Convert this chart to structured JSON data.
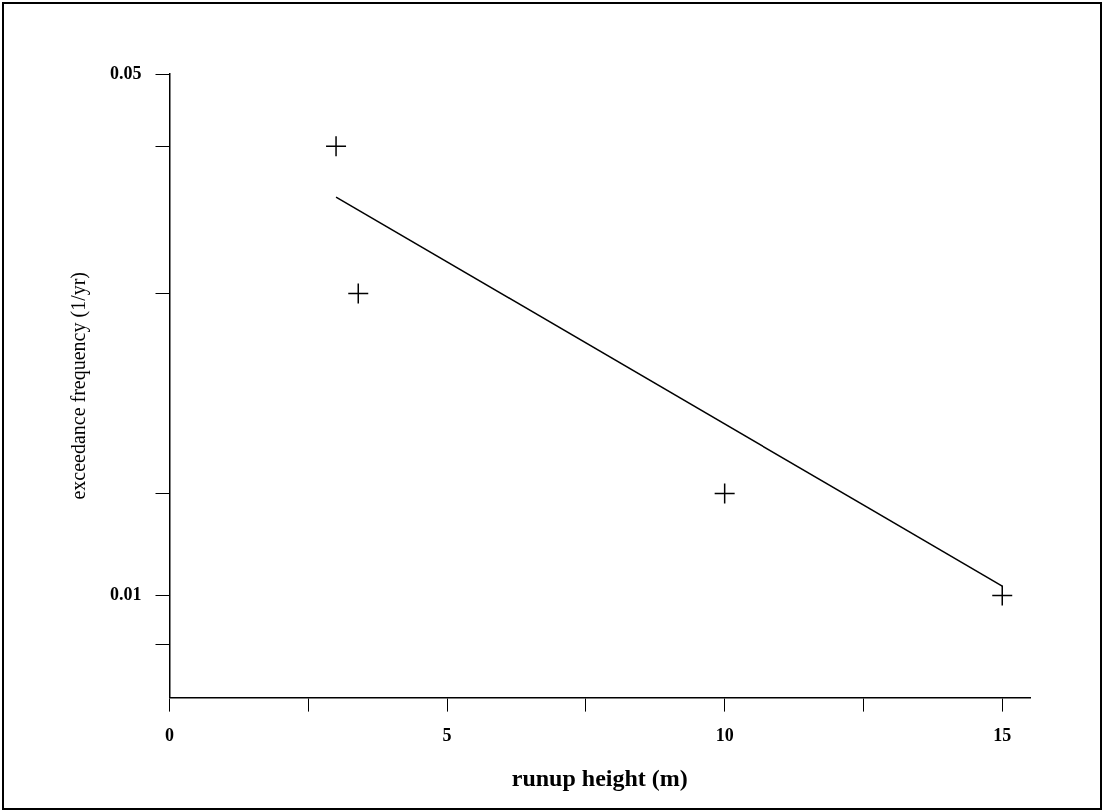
{
  "chart_data": {
    "type": "scatter",
    "xlabel": "runup height (m)",
    "ylabel": "exceedance frequency (1/yr)",
    "log": "y",
    "grid": false,
    "legend": false,
    "marker": "cross",
    "xlim": [
      0,
      15.5
    ],
    "xticks": [
      0,
      {
        "value": 2.5,
        "label": null
      },
      5,
      {
        "value": 7.5,
        "label": null
      },
      10,
      {
        "value": 12.5,
        "label": null
      },
      15
    ],
    "ylim": [
      0.0073,
      0.05
    ],
    "yticks": [
      0.05,
      {
        "value": 0.04,
        "label": null
      },
      {
        "value": 0.0254,
        "label": null
      },
      {
        "value": 0.0137,
        "label": null
      },
      0.01,
      {
        "value": 0.0086,
        "label": null
      }
    ],
    "series": [
      {
        "type": "scatter",
        "color": "#000000",
        "x": [
          3,
          3.4,
          10,
          15
        ],
        "values": [
          0.04,
          0.0254,
          0.0137,
          0.01
        ]
      },
      {
        "type": "line",
        "color": "#000000",
        "marker": "none",
        "line_style": "solid",
        "x": [
          3,
          15
        ],
        "values": [
          0.0342,
          0.0103
        ]
      }
    ]
  }
}
